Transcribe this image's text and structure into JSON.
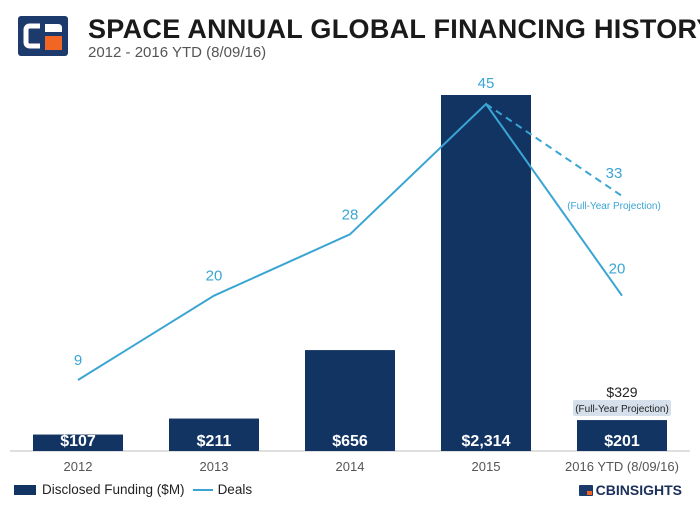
{
  "header": {
    "title": "SPACE ANNUAL GLOBAL FINANCING HISTORY",
    "subtitle": "2012 - 2016 YTD (8/09/16)"
  },
  "legend": {
    "bar_label": "Disclosed Funding ($M)",
    "line_label": "Deals"
  },
  "brand": {
    "name": "CBINSIGHTS",
    "logo_icon": "cb-insights-logo-icon"
  },
  "colors": {
    "bar": "#123463",
    "line": "#3aa5d3",
    "projection_box": "#d6e0ec"
  },
  "chart_data": {
    "type": "bar",
    "categories": [
      "2012",
      "2013",
      "2014",
      "2015",
      "2016 YTD (8/09/16)"
    ],
    "series": [
      {
        "name": "Disclosed Funding ($M)",
        "type": "bar",
        "values": [
          107,
          211,
          656,
          2314,
          201
        ],
        "labels": [
          "$107",
          "$211",
          "$656",
          "$2,314",
          "$201"
        ]
      },
      {
        "name": "Deals",
        "type": "line",
        "values": [
          9,
          20,
          28,
          45,
          20
        ],
        "labels": [
          "9",
          "20",
          "28",
          "45",
          "20"
        ]
      }
    ],
    "projections": {
      "funding": {
        "value": 329,
        "label": "$329",
        "note": "(Full-Year Projection)"
      },
      "deals": {
        "value": 33,
        "label": "33",
        "note": "(Full-Year Projection)"
      }
    },
    "grid": false,
    "legend_position": "bottom-left"
  }
}
